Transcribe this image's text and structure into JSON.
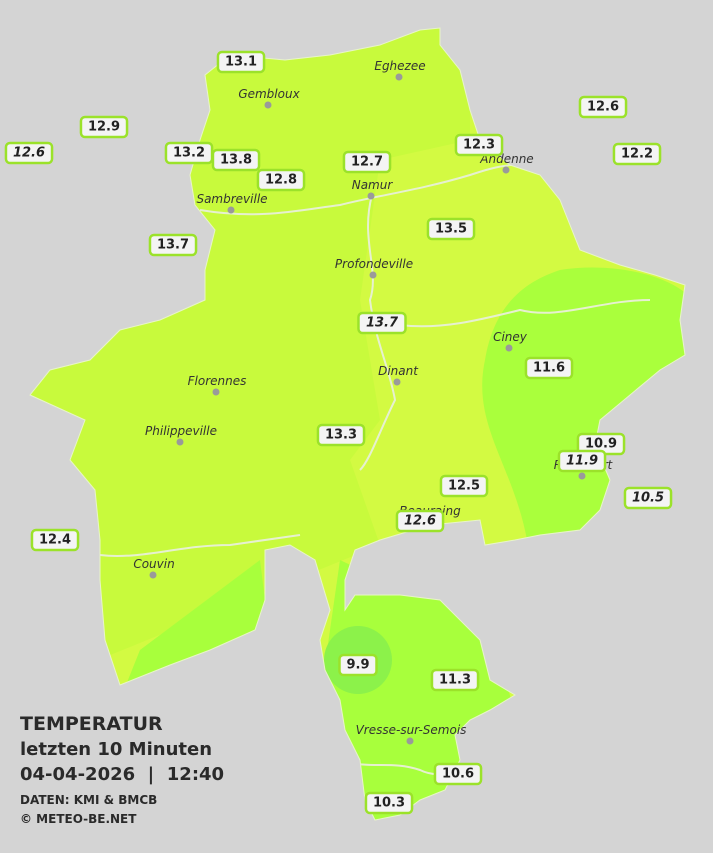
{
  "header": {
    "title": "TEMPERATUR",
    "subtitle": "letzten 10 Minuten",
    "datetime": "04-04-2026  |  12:40",
    "source": "DATEN: KMI & BMCB",
    "copyright": "© METEO-BE.NET"
  },
  "towns": [
    "Eghezee",
    "Gembloux",
    "Andenne",
    "Namur",
    "Sambreville",
    "Profondeville",
    "Ciney",
    "Dinant",
    "Florennes",
    "Philippeville",
    "Rochefort",
    "Beauraing",
    "Couvin",
    "Vresse-sur-Semois"
  ],
  "readings": [
    {
      "value": "13.1"
    },
    {
      "value": "12.9"
    },
    {
      "value": "12.6",
      "italic": true
    },
    {
      "value": "13.2"
    },
    {
      "value": "13.8"
    },
    {
      "value": "12.8"
    },
    {
      "value": "12.7"
    },
    {
      "value": "12.3"
    },
    {
      "value": "12.6"
    },
    {
      "value": "12.2"
    },
    {
      "value": "13.7"
    },
    {
      "value": "13.5"
    },
    {
      "value": "13.7",
      "italic": true
    },
    {
      "value": "11.6"
    },
    {
      "value": "10.9"
    },
    {
      "value": "11.9",
      "italic": true
    },
    {
      "value": "10.5",
      "italic": true
    },
    {
      "value": "13.3"
    },
    {
      "value": "12.5"
    },
    {
      "value": "12.6",
      "italic": true
    },
    {
      "value": "12.4"
    },
    {
      "value": "9.9"
    },
    {
      "value": "11.3"
    },
    {
      "value": "10.6"
    },
    {
      "value": "10.3"
    }
  ]
}
